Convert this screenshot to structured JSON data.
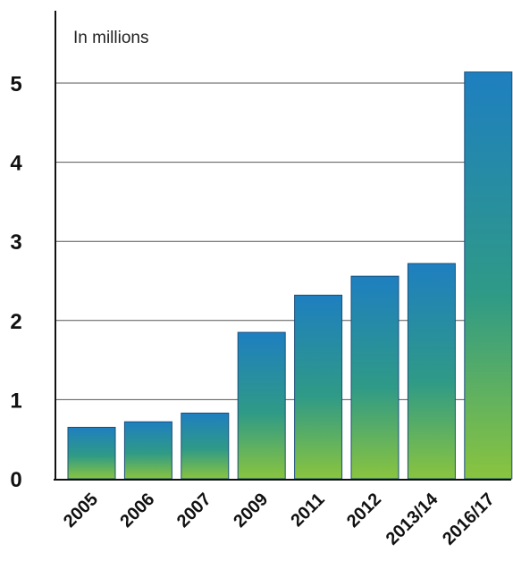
{
  "chart_data": {
    "type": "bar",
    "unit_label": "In millions",
    "categories": [
      "2005",
      "2006",
      "2007",
      "2009",
      "2011",
      "2012",
      "2013/14",
      "2016/17"
    ],
    "values": [
      0.65,
      0.72,
      0.83,
      1.85,
      2.32,
      2.56,
      2.72,
      5.14
    ],
    "yticks": [
      "0",
      "1",
      "2",
      "3",
      "4",
      "5"
    ],
    "ylim": [
      0,
      5.5
    ],
    "grid": true,
    "legend": "none",
    "colors": {
      "bar_top": "#1e7fc0",
      "bar_mid": "#2f9a86",
      "bar_bottom": "#8ac43f",
      "grid": "#555555",
      "axis": "#111111"
    }
  }
}
